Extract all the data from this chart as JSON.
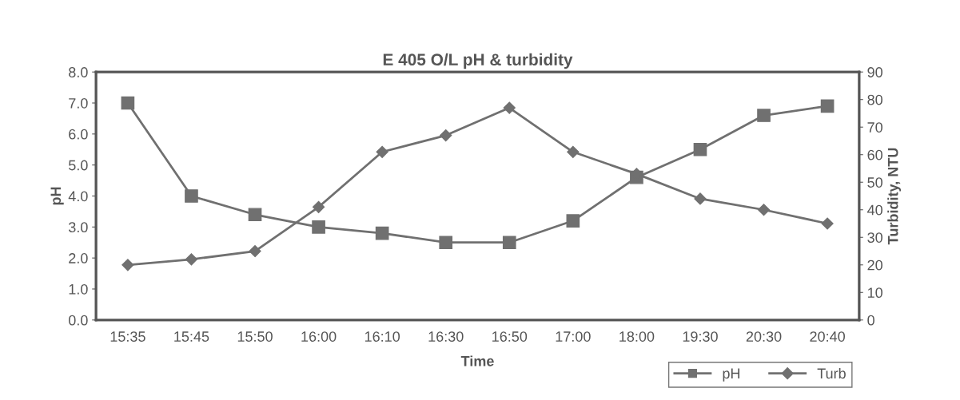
{
  "chart_data": {
    "type": "line",
    "title": "E 405 O/L pH & turbidity",
    "xlabel": "Time",
    "ylabel": "pH",
    "y2label": "Turbidity, NTU",
    "categories": [
      "15:35",
      "15:45",
      "15:50",
      "16:00",
      "16:10",
      "16:30",
      "16:50",
      "17:00",
      "18:00",
      "19:30",
      "20:30",
      "20:40"
    ],
    "series": [
      {
        "name": "pH",
        "color": "#707070",
        "marker": "square",
        "values": [
          7.0,
          4.0,
          3.4,
          3.0,
          2.8,
          2.5,
          2.5,
          3.2,
          4.6,
          5.5,
          6.6,
          6.9
        ]
      },
      {
        "name": "Turb",
        "color": "#707070",
        "marker": "diamond",
        "axis": "y2",
        "values": [
          20,
          22,
          25,
          41,
          61,
          67,
          77,
          61,
          53,
          44,
          40,
          35
        ]
      }
    ],
    "ylim": [
      0,
      8
    ],
    "yticks": [
      {
        "value": 0,
        "label": "0.0"
      },
      {
        "value": 1,
        "label": "1.0"
      },
      {
        "value": 2,
        "label": "2.0"
      },
      {
        "value": 3,
        "label": "3.0"
      },
      {
        "value": 4,
        "label": "4.0"
      },
      {
        "value": 5,
        "label": "5.0"
      },
      {
        "value": 6,
        "label": "6.0"
      },
      {
        "value": 7,
        "label": "7.0"
      },
      {
        "value": 8,
        "label": "8.0"
      }
    ],
    "y2lim": [
      0,
      90
    ],
    "y2ticks": [
      0,
      10,
      20,
      30,
      40,
      50,
      60,
      70,
      80,
      90
    ],
    "grid": false,
    "legend": "bottom right",
    "line_style": "solid"
  }
}
